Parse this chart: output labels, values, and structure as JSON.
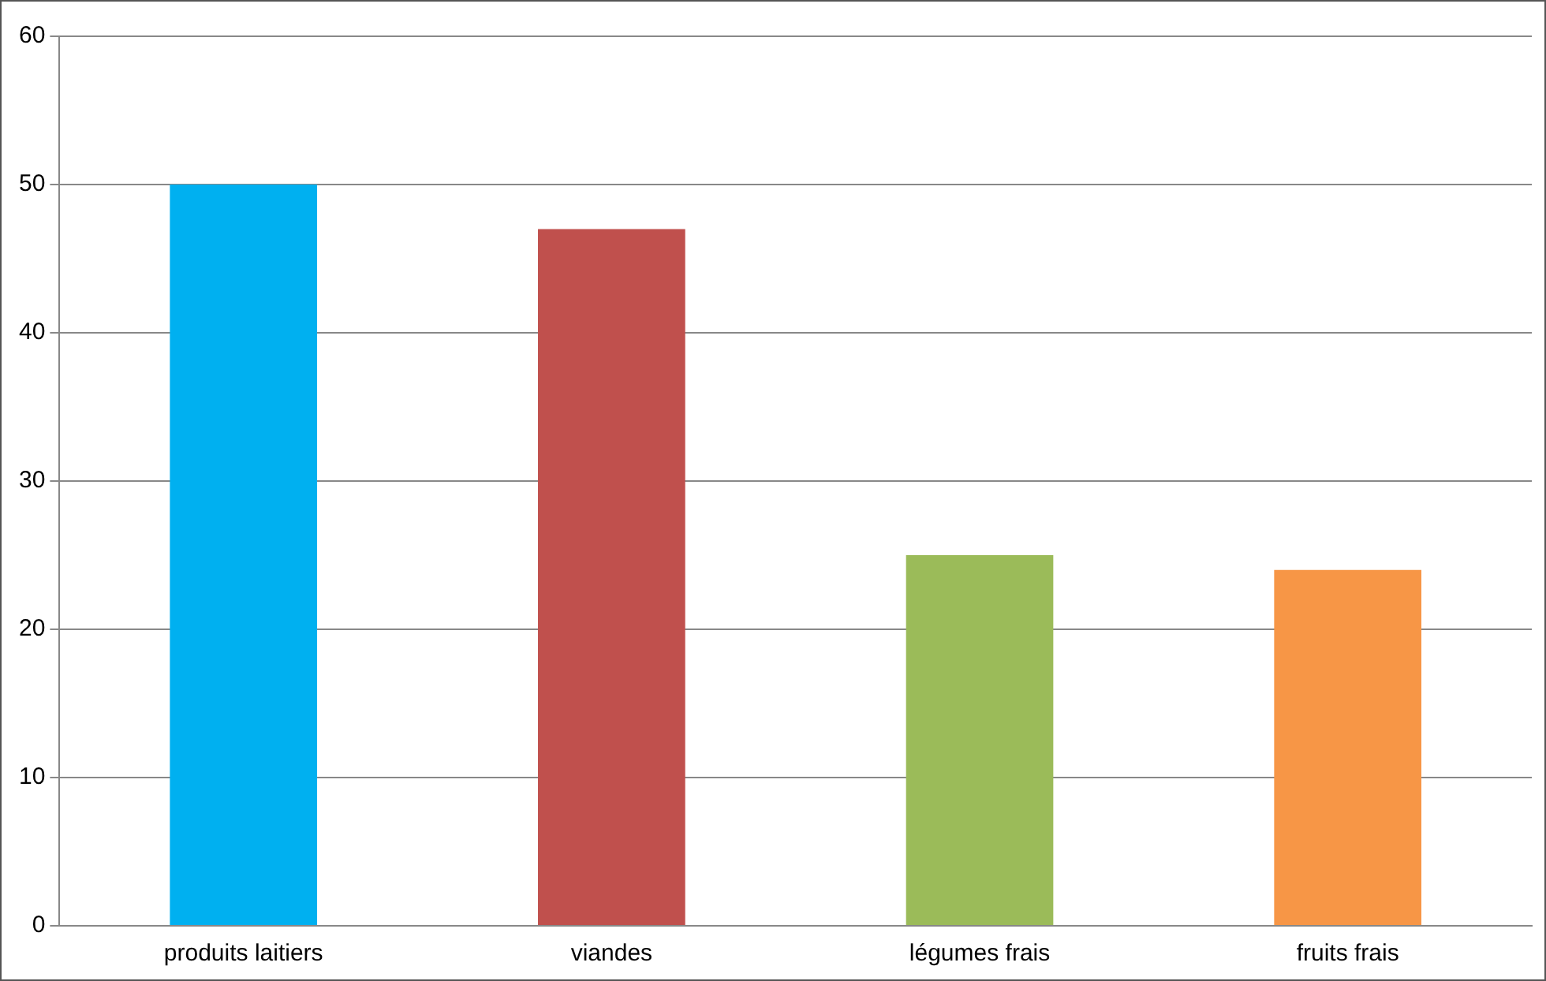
{
  "chart_data": {
    "type": "bar",
    "categories": [
      "produits laitiers",
      "viandes",
      "légumes frais",
      "fruits frais"
    ],
    "values": [
      50,
      47,
      25,
      24
    ],
    "colors": [
      "#00b0f0",
      "#c0504d",
      "#9bbb59",
      "#f79646"
    ],
    "ylim": [
      0,
      60
    ],
    "yticks": [
      0,
      10,
      20,
      30,
      40,
      50,
      60
    ],
    "grid": "y",
    "legend": false
  }
}
